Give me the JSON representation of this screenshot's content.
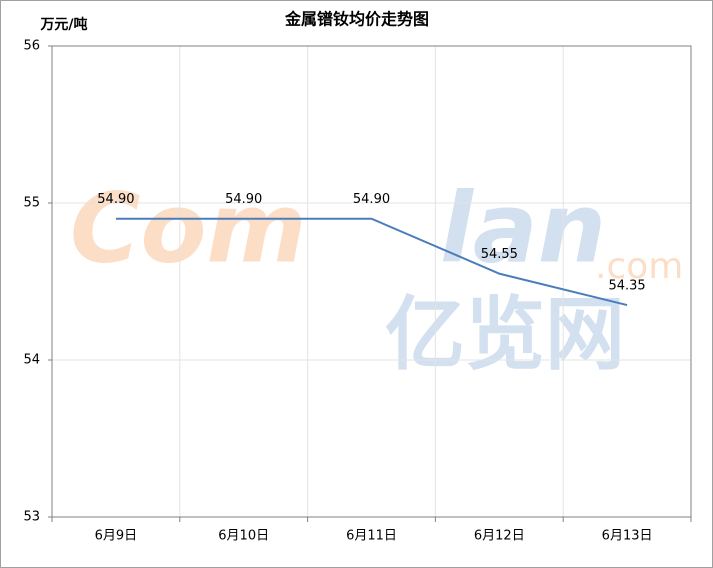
{
  "chart_data": {
    "type": "line",
    "title": "金属镨钕均价走势图",
    "y_label": "万元/吨",
    "categories": [
      "6月9日",
      "6月10日",
      "6月11日",
      "6月12日",
      "6月13日"
    ],
    "values": [
      54.9,
      54.9,
      54.9,
      54.55,
      54.35
    ],
    "value_labels": [
      "54.90",
      "54.90",
      "54.90",
      "54.55",
      "54.35"
    ],
    "color": "#4a7ebb",
    "ylim": [
      53,
      56
    ],
    "yticks": [
      53,
      54,
      55,
      56
    ],
    "grid": true,
    "watermark": [
      "Com",
      "lan",
      ".com",
      "亿览网"
    ]
  }
}
